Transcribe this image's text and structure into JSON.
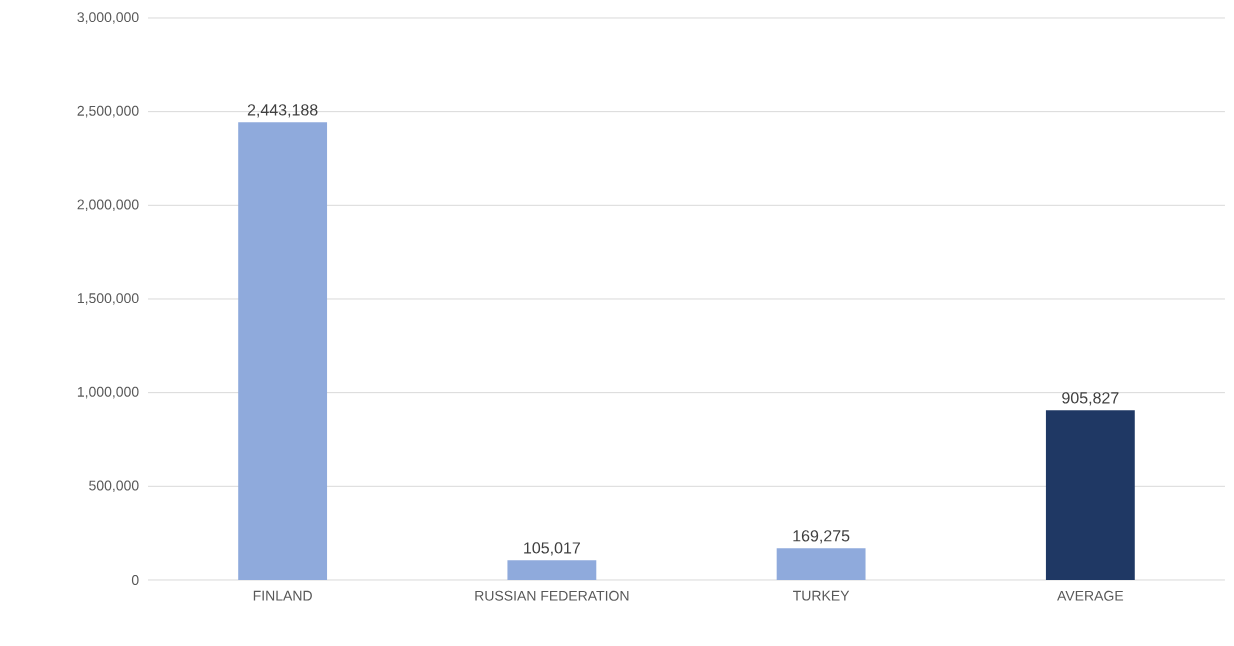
{
  "chart_data": {
    "type": "bar",
    "categories": [
      "FINLAND",
      "RUSSIAN FEDERATION",
      "TURKEY",
      "AVERAGE"
    ],
    "values": [
      2443188,
      105017,
      169275,
      905827
    ],
    "colors": [
      "#8faadc",
      "#8faadc",
      "#8faadc",
      "#1f3864"
    ],
    "value_labels": [
      "2,443,188",
      "105,017",
      "169,275",
      "905,827"
    ],
    "ylim": [
      0,
      3000000
    ],
    "yticks": [
      {
        "value": 0,
        "label": "0"
      },
      {
        "value": 500000,
        "label": "500,000"
      },
      {
        "value": 1000000,
        "label": "1,000,000"
      },
      {
        "value": 1500000,
        "label": "1,500,000"
      },
      {
        "value": 2000000,
        "label": "2,000,000"
      },
      {
        "value": 2500000,
        "label": "2,500,000"
      },
      {
        "value": 3000000,
        "label": "3,000,000"
      }
    ],
    "grid": "y"
  }
}
